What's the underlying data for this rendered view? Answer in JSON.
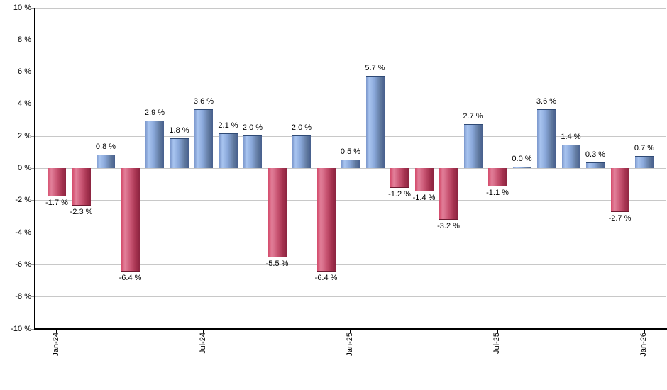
{
  "chart_data": {
    "type": "bar",
    "title": "",
    "xlabel": "",
    "ylabel": "",
    "ylim": [
      -10,
      10
    ],
    "ytick_step": 2,
    "grid": true,
    "legend": "none",
    "values": [
      -1.7,
      -2.3,
      0.8,
      -6.4,
      2.9,
      1.8,
      3.6,
      2.1,
      2.0,
      -5.5,
      2.0,
      -6.4,
      0.5,
      5.7,
      -1.2,
      -1.4,
      -3.2,
      2.7,
      -1.1,
      0.0,
      3.6,
      1.4,
      0.3,
      -2.7,
      0.7
    ],
    "bar_labels": [
      "-1.7 %",
      "-2.3 %",
      "0.8 %",
      "-6.4 %",
      "2.9 %",
      "1.8 %",
      "3.6 %",
      "2.1 %",
      "2.0 %",
      "-5.5 %",
      "2.0 %",
      "-6.4 %",
      "0.5 %",
      "5.7 %",
      "-1.2 %",
      "-1.4 %",
      "-3.2 %",
      "2.7 %",
      "-1.1 %",
      "0.0 %",
      "3.6 %",
      "1.4 %",
      "0.3 %",
      "-2.7 %",
      "0.7 %"
    ],
    "ytick_labels": [
      "10 %",
      "8 %",
      "6 %",
      "4 %",
      "2 %",
      "0 %",
      "-2 %",
      "-4 %",
      "-6 %",
      "-8 %",
      "-10 %"
    ],
    "x_ticks": [
      {
        "bar_index": 0,
        "label": "Jan-24"
      },
      {
        "bar_index": 6,
        "label": "Jul-24"
      },
      {
        "bar_index": 12,
        "label": "Jan-25"
      },
      {
        "bar_index": 18,
        "label": "Jul-25"
      },
      {
        "bar_index": 24,
        "label": "Jan-26"
      }
    ],
    "colors": {
      "positive_bar": "#8fb0e2",
      "positive_bar_dark": "#475f8d",
      "negative_bar": "#d04e6c",
      "negative_bar_dark": "#8c2440",
      "gridline": "#c8c8c8",
      "axis": "#000000",
      "label_text": "#000000"
    }
  }
}
